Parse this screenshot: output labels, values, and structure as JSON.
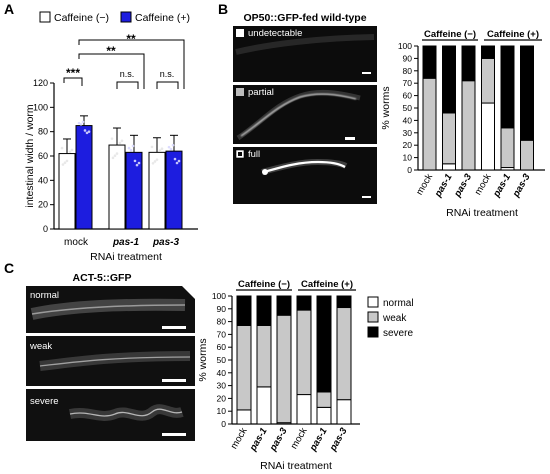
{
  "panels": {
    "A": {
      "letter": "A",
      "legend": [
        {
          "label": "Caffeine (−)",
          "color": "#ffffff"
        },
        {
          "label": "Caffeine (+)",
          "color": "#1d1ddf"
        }
      ],
      "significance": [
        "***",
        "**",
        "**",
        "n.s.",
        "n.s."
      ]
    },
    "B": {
      "letter": "B",
      "image_title": "OP50::GFP-fed wild-type",
      "image_labels": [
        "undetectable",
        "partial",
        "full"
      ],
      "group_labels": [
        "Caffeine (−)",
        "Caffeine (+)"
      ]
    },
    "C": {
      "letter": "C",
      "image_title": "ACT-5::GFP",
      "image_labels": [
        "normal",
        "weak",
        "severe"
      ],
      "group_labels": [
        "Caffeine (−)",
        "Caffeine (+)"
      ],
      "legend": [
        {
          "label": "normal",
          "color": "#ffffff"
        },
        {
          "label": "weak",
          "color": "#c8c8c8"
        },
        {
          "label": "severe",
          "color": "#000000"
        }
      ]
    }
  },
  "chart_data": [
    {
      "type": "bar",
      "panel": "A",
      "categories": [
        "mock",
        "pas-1",
        "pas-3"
      ],
      "series": [
        {
          "name": "Caffeine (−)",
          "color": "#ffffff",
          "values": [
            62,
            69,
            63
          ],
          "errors": [
            12,
            14,
            12
          ]
        },
        {
          "name": "Caffeine (+)",
          "color": "#1d1ddf",
          "values": [
            85,
            63,
            64
          ],
          "errors": [
            8,
            14,
            13
          ]
        }
      ],
      "xlabel": "RNAi treatment",
      "ylabel": "intestinal width / worm",
      "ylim": [
        0,
        120
      ],
      "yticks": [
        0,
        20,
        40,
        60,
        80,
        100,
        120
      ]
    },
    {
      "type": "bar",
      "panel": "B",
      "stacked": true,
      "categories": [
        "mock",
        "pas-1",
        "pas-3",
        "mock",
        "pas-1",
        "pas-3"
      ],
      "series": [
        {
          "name": "undetectable",
          "color": "#000000",
          "values": [
            26,
            54,
            28,
            10,
            66,
            76
          ]
        },
        {
          "name": "partial",
          "color": "#c8c8c8",
          "values": [
            74,
            41,
            72,
            36,
            32,
            24
          ]
        },
        {
          "name": "full",
          "color": "#ffffff",
          "values": [
            0,
            5,
            0,
            54,
            2,
            0
          ]
        }
      ],
      "xlabel": "RNAi treatment",
      "ylabel": "% worms",
      "ylim": [
        0,
        100
      ],
      "yticks": [
        0,
        10,
        20,
        30,
        40,
        50,
        60,
        70,
        80,
        90,
        100
      ]
    },
    {
      "type": "bar",
      "panel": "C",
      "stacked": true,
      "categories": [
        "mock",
        "pas-1",
        "pas-3",
        "mock",
        "pas-1",
        "pas-3"
      ],
      "series": [
        {
          "name": "normal",
          "color": "#ffffff",
          "values": [
            11,
            29,
            1,
            23,
            13,
            19
          ]
        },
        {
          "name": "weak",
          "color": "#c8c8c8",
          "values": [
            66,
            48,
            84,
            66,
            12,
            72
          ]
        },
        {
          "name": "severe",
          "color": "#000000",
          "values": [
            23,
            23,
            15,
            11,
            75,
            9
          ]
        }
      ],
      "xlabel": "RNAi treatment",
      "ylabel": "% worms",
      "ylim": [
        0,
        100
      ],
      "yticks": [
        0,
        10,
        20,
        30,
        40,
        50,
        60,
        70,
        80,
        90,
        100
      ]
    }
  ]
}
